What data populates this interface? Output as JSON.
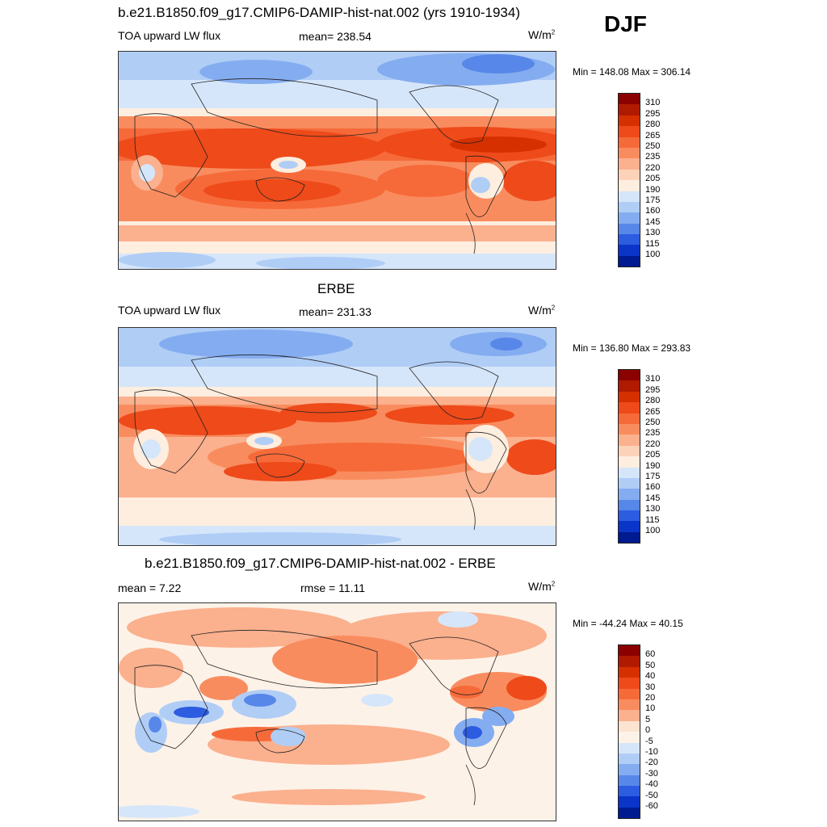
{
  "season": "DJF",
  "panels": [
    {
      "title": "b.e21.B1850.f09_g17.CMIP6-DAMIP-hist-nat.002 (yrs 1910-1934)",
      "left_label": "TOA upward LW flux",
      "center_label": "mean= 238.54",
      "units": "W/m",
      "units_sup": "2",
      "minmax": "Min = 148.08 Max = 306.14",
      "palette": "abs"
    },
    {
      "title": "ERBE",
      "left_label": "TOA upward LW flux",
      "center_label": "mean= 231.33",
      "units": "W/m",
      "units_sup": "2",
      "minmax": "Min = 136.80 Max = 293.83",
      "palette": "abs"
    },
    {
      "title": "b.e21.B1850.f09_g17.CMIP6-DAMIP-hist-nat.002 - ERBE",
      "left_label": "mean =   7.22",
      "center_label": "rmse =  11.11",
      "units": "W/m",
      "units_sup": "2",
      "minmax": "Min = -44.24 Max =  40.15",
      "palette": "diff"
    }
  ],
  "colorbars": {
    "abs": {
      "labels": [
        "310",
        "295",
        "280",
        "265",
        "250",
        "235",
        "220",
        "205",
        "190",
        "175",
        "160",
        "145",
        "130",
        "115",
        "100"
      ],
      "colors": [
        "#8b0000",
        "#b01a00",
        "#d63000",
        "#ee4a1a",
        "#f66a3a",
        "#f98c5e",
        "#fbb08e",
        "#fcd3b8",
        "#fdeedf",
        "#d6e6fa",
        "#b0cdf6",
        "#84acf0",
        "#5787e8",
        "#2c5ce0",
        "#0a35c8",
        "#001a90"
      ]
    },
    "diff": {
      "labels": [
        "60",
        "50",
        "40",
        "30",
        "20",
        "10",
        "5",
        "0",
        "-5",
        "-10",
        "-20",
        "-30",
        "-40",
        "-50",
        "-60"
      ],
      "colors": [
        "#8b0000",
        "#b01a00",
        "#d63000",
        "#ee4a1a",
        "#f66a3a",
        "#f98c5e",
        "#fbb08e",
        "#fde4d0",
        "#fdf2e8",
        "#d6e6fa",
        "#b0cdf6",
        "#84acf0",
        "#5787e8",
        "#2c5ce0",
        "#0a35c8",
        "#001a90"
      ]
    }
  }
}
